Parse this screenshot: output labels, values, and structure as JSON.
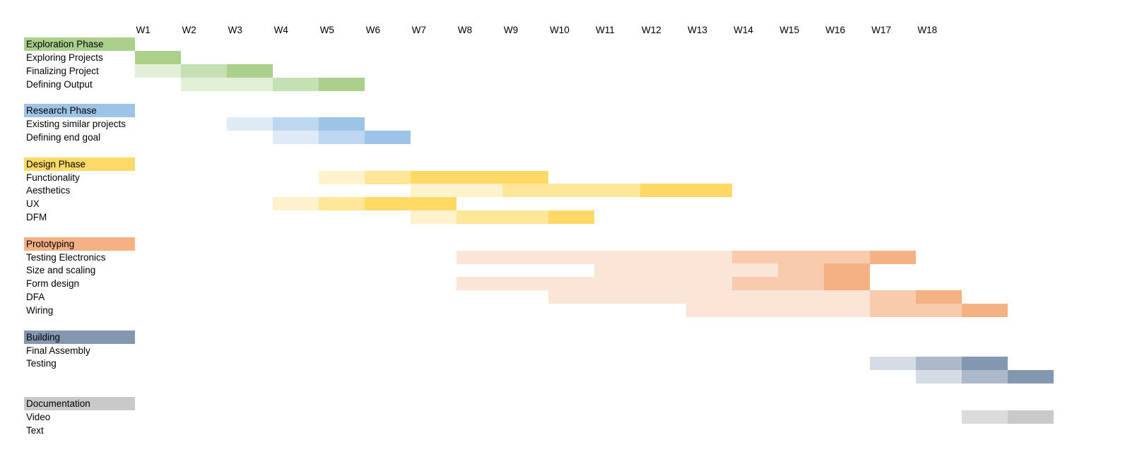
{
  "chart_data": {
    "type": "gantt",
    "weeks": [
      "W1",
      "W2",
      "W3",
      "W4",
      "W5",
      "W6",
      "W7",
      "W8",
      "W9",
      "W10",
      "W11",
      "W12",
      "W13",
      "W14",
      "W15",
      "W16",
      "W17",
      "W18"
    ],
    "intensity_levels": [
      "light",
      "medium",
      "full"
    ],
    "phases": [
      {
        "name": "Exploration Phase",
        "color": "#abd08c",
        "shades": [
          "#e2efd9",
          "#c5e0b3",
          "#abd08c"
        ],
        "tasks": [
          {
            "label": "Exploring Projects",
            "segments": [
              {
                "from": 1,
                "to": 1,
                "level": 2
              }
            ]
          },
          {
            "label": "Finalizing Project",
            "segments": [
              {
                "from": 1,
                "to": 1,
                "level": 0
              },
              {
                "from": 2,
                "to": 2,
                "level": 1
              },
              {
                "from": 3,
                "to": 3,
                "level": 2
              }
            ]
          },
          {
            "label": "Defining Output",
            "segments": [
              {
                "from": 2,
                "to": 3,
                "level": 0
              },
              {
                "from": 4,
                "to": 4,
                "level": 1
              },
              {
                "from": 5,
                "to": 5,
                "level": 2
              }
            ]
          }
        ]
      },
      {
        "name": "Research Phase",
        "color": "#9dc3e6",
        "shades": [
          "#deebf7",
          "#bdd7ee",
          "#9dc3e6"
        ],
        "tasks": [
          {
            "label": "Existing similar projects",
            "segments": [
              {
                "from": 3,
                "to": 3,
                "level": 0
              },
              {
                "from": 4,
                "to": 4,
                "level": 1
              },
              {
                "from": 5,
                "to": 5,
                "level": 2
              }
            ]
          },
          {
            "label": "Defining end goal",
            "segments": [
              {
                "from": 4,
                "to": 4,
                "level": 0
              },
              {
                "from": 5,
                "to": 5,
                "level": 1
              },
              {
                "from": 6,
                "to": 6,
                "level": 2
              }
            ]
          }
        ]
      },
      {
        "name": "Design Phase",
        "color": "#ffd966",
        "shades": [
          "#fff2cc",
          "#ffe699",
          "#ffd966"
        ],
        "tasks": [
          {
            "label": "Functionality",
            "segments": [
              {
                "from": 5,
                "to": 5,
                "level": 0
              },
              {
                "from": 6,
                "to": 6,
                "level": 1
              },
              {
                "from": 7,
                "to": 9,
                "level": 2
              }
            ]
          },
          {
            "label": "Aesthetics",
            "segments": [
              {
                "from": 7,
                "to": 8,
                "level": 0
              },
              {
                "from": 9,
                "to": 11,
                "level": 1
              },
              {
                "from": 12,
                "to": 13,
                "level": 2
              }
            ]
          },
          {
            "label": "UX",
            "segments": [
              {
                "from": 4,
                "to": 4,
                "level": 0
              },
              {
                "from": 5,
                "to": 5,
                "level": 1
              },
              {
                "from": 6,
                "to": 7,
                "level": 2
              }
            ]
          },
          {
            "label": "DFM",
            "segments": [
              {
                "from": 7,
                "to": 7,
                "level": 0
              },
              {
                "from": 8,
                "to": 9,
                "level": 1
              },
              {
                "from": 10,
                "to": 10,
                "level": 2
              }
            ]
          }
        ]
      },
      {
        "name": "Prototyping",
        "color": "#f4b183",
        "shades": [
          "#fbe5d6",
          "#f8cbad",
          "#f4b183"
        ],
        "tasks": [
          {
            "label": "Testing Electronics",
            "segments": [
              {
                "from": 8,
                "to": 13,
                "level": 0
              },
              {
                "from": 14,
                "to": 16,
                "level": 1
              },
              {
                "from": 17,
                "to": 17,
                "level": 2
              }
            ]
          },
          {
            "label": "Size and scaling",
            "segments": [
              {
                "from": 11,
                "to": 14,
                "level": 0
              },
              {
                "from": 15,
                "to": 15,
                "level": 1
              },
              {
                "from": 16,
                "to": 16,
                "level": 2
              }
            ]
          },
          {
            "label": "Form design",
            "segments": [
              {
                "from": 8,
                "to": 13,
                "level": 0
              },
              {
                "from": 14,
                "to": 15,
                "level": 1
              },
              {
                "from": 16,
                "to": 16,
                "level": 2
              }
            ]
          },
          {
            "label": "DFA",
            "segments": [
              {
                "from": 10,
                "to": 16,
                "level": 0
              },
              {
                "from": 17,
                "to": 17,
                "level": 1
              },
              {
                "from": 18,
                "to": 18,
                "level": 2
              }
            ]
          },
          {
            "label": "Wiring",
            "segments": [
              {
                "from": 13,
                "to": 16,
                "level": 0
              },
              {
                "from": 17,
                "to": 18,
                "level": 1
              },
              {
                "from": 19,
                "to": 19,
                "level": 2
              }
            ]
          }
        ]
      },
      {
        "name": "Building",
        "color": "#8497b0",
        "shades": [
          "#d6dce5",
          "#adb9ca",
          "#8497b0"
        ],
        "tasks": [
          {
            "label": "Final Assembly",
            "segments": []
          },
          {
            "label": "Testing",
            "segments": [
              {
                "from": 17,
                "to": 17,
                "level": 0
              },
              {
                "from": 18,
                "to": 18,
                "level": 1
              },
              {
                "from": 19,
                "to": 19,
                "level": 2
              }
            ]
          },
          {
            "label": "",
            "segments": [
              {
                "from": 18,
                "to": 18,
                "level": 0
              },
              {
                "from": 19,
                "to": 19,
                "level": 1
              },
              {
                "from": 20,
                "to": 20,
                "level": 2
              }
            ]
          }
        ]
      },
      {
        "name": "Documentation",
        "color": "#c9c9c9",
        "shades": [
          "#ededed",
          "#dbdbdb",
          "#c9c9c9"
        ],
        "tasks": [
          {
            "label": "Video",
            "segments": [
              {
                "from": 19,
                "to": 19,
                "level": 1
              },
              {
                "from": 20,
                "to": 20,
                "level": 2
              }
            ]
          },
          {
            "label": "Text",
            "segments": []
          }
        ]
      }
    ]
  }
}
